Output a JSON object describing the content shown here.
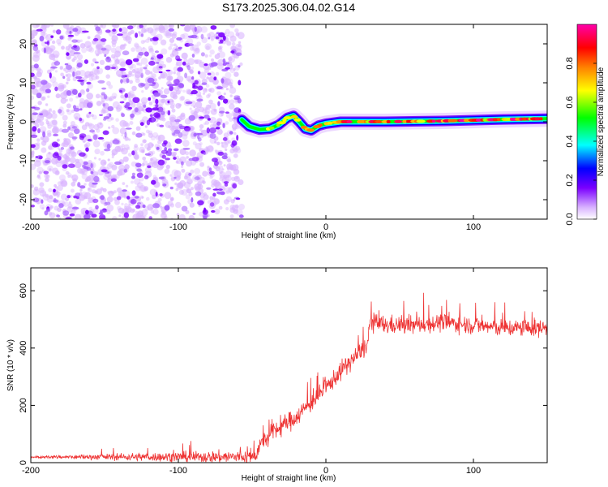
{
  "title": "S173.2025.306.04.02.G14",
  "chart_data": [
    {
      "type": "heatmap",
      "name": "spectrogram",
      "xlabel": "Height of straight line (km)",
      "ylabel": "Frequency (Hz)",
      "xlim": [
        -200,
        150
      ],
      "ylim": [
        -25,
        25
      ],
      "xticks": [
        -200,
        -100,
        0,
        100
      ],
      "yticks": [
        -20,
        -10,
        0,
        10,
        20
      ],
      "noise_region_x": [
        -200,
        -57
      ],
      "signal_track": [
        {
          "x": -57,
          "y": 0.5
        },
        {
          "x": -52,
          "y": -1.2
        },
        {
          "x": -45,
          "y": -2.0
        },
        {
          "x": -38,
          "y": -1.8
        },
        {
          "x": -32,
          "y": -0.8
        },
        {
          "x": -26,
          "y": 1.0
        },
        {
          "x": -22,
          "y": 1.5
        },
        {
          "x": -18,
          "y": 0.0
        },
        {
          "x": -14,
          "y": -1.8
        },
        {
          "x": -10,
          "y": -2.2
        },
        {
          "x": -5,
          "y": -1.0
        },
        {
          "x": 0,
          "y": -0.5
        },
        {
          "x": 10,
          "y": 0.0
        },
        {
          "x": 40,
          "y": 0.0
        },
        {
          "x": 80,
          "y": 0.2
        },
        {
          "x": 120,
          "y": 0.6
        },
        {
          "x": 150,
          "y": 0.8
        }
      ],
      "colorbar": {
        "label": "Normalized spectral amplitude",
        "range": [
          0,
          1
        ],
        "ticks": [
          0.0,
          0.2,
          0.4,
          0.6,
          0.8
        ],
        "tick_labels": [
          "0.0",
          "0.2",
          "0.4",
          "0.6",
          "0.8"
        ],
        "colors": [
          "#ffffff",
          "#d9b3ff",
          "#7a00ff",
          "#0000ff",
          "#00ffff",
          "#00ff00",
          "#ffff00",
          "#ff8000",
          "#ff0000",
          "#ff00aa"
        ]
      }
    },
    {
      "type": "line",
      "name": "snr",
      "xlabel": "Height of straight line (km)",
      "ylabel": "SNR (10 * v/v)",
      "xlim": [
        -200,
        150
      ],
      "ylim": [
        0,
        680
      ],
      "xticks": [
        -200,
        -100,
        0,
        100
      ],
      "yticks": [
        0,
        200,
        400,
        600
      ],
      "color": "#ee3333",
      "profile_x": [
        -200,
        -48,
        -45,
        -35,
        -20,
        -10,
        0,
        10,
        20,
        28,
        30,
        40,
        60,
        80,
        100,
        120,
        150
      ],
      "profile_y": [
        20,
        20,
        60,
        110,
        160,
        210,
        260,
        320,
        370,
        410,
        490,
        480,
        480,
        490,
        480,
        470,
        470
      ],
      "noise_amplitude": [
        6,
        45,
        55,
        60,
        60,
        60,
        55,
        60,
        60,
        60,
        60,
        60,
        55,
        55,
        55,
        55,
        55
      ]
    }
  ]
}
